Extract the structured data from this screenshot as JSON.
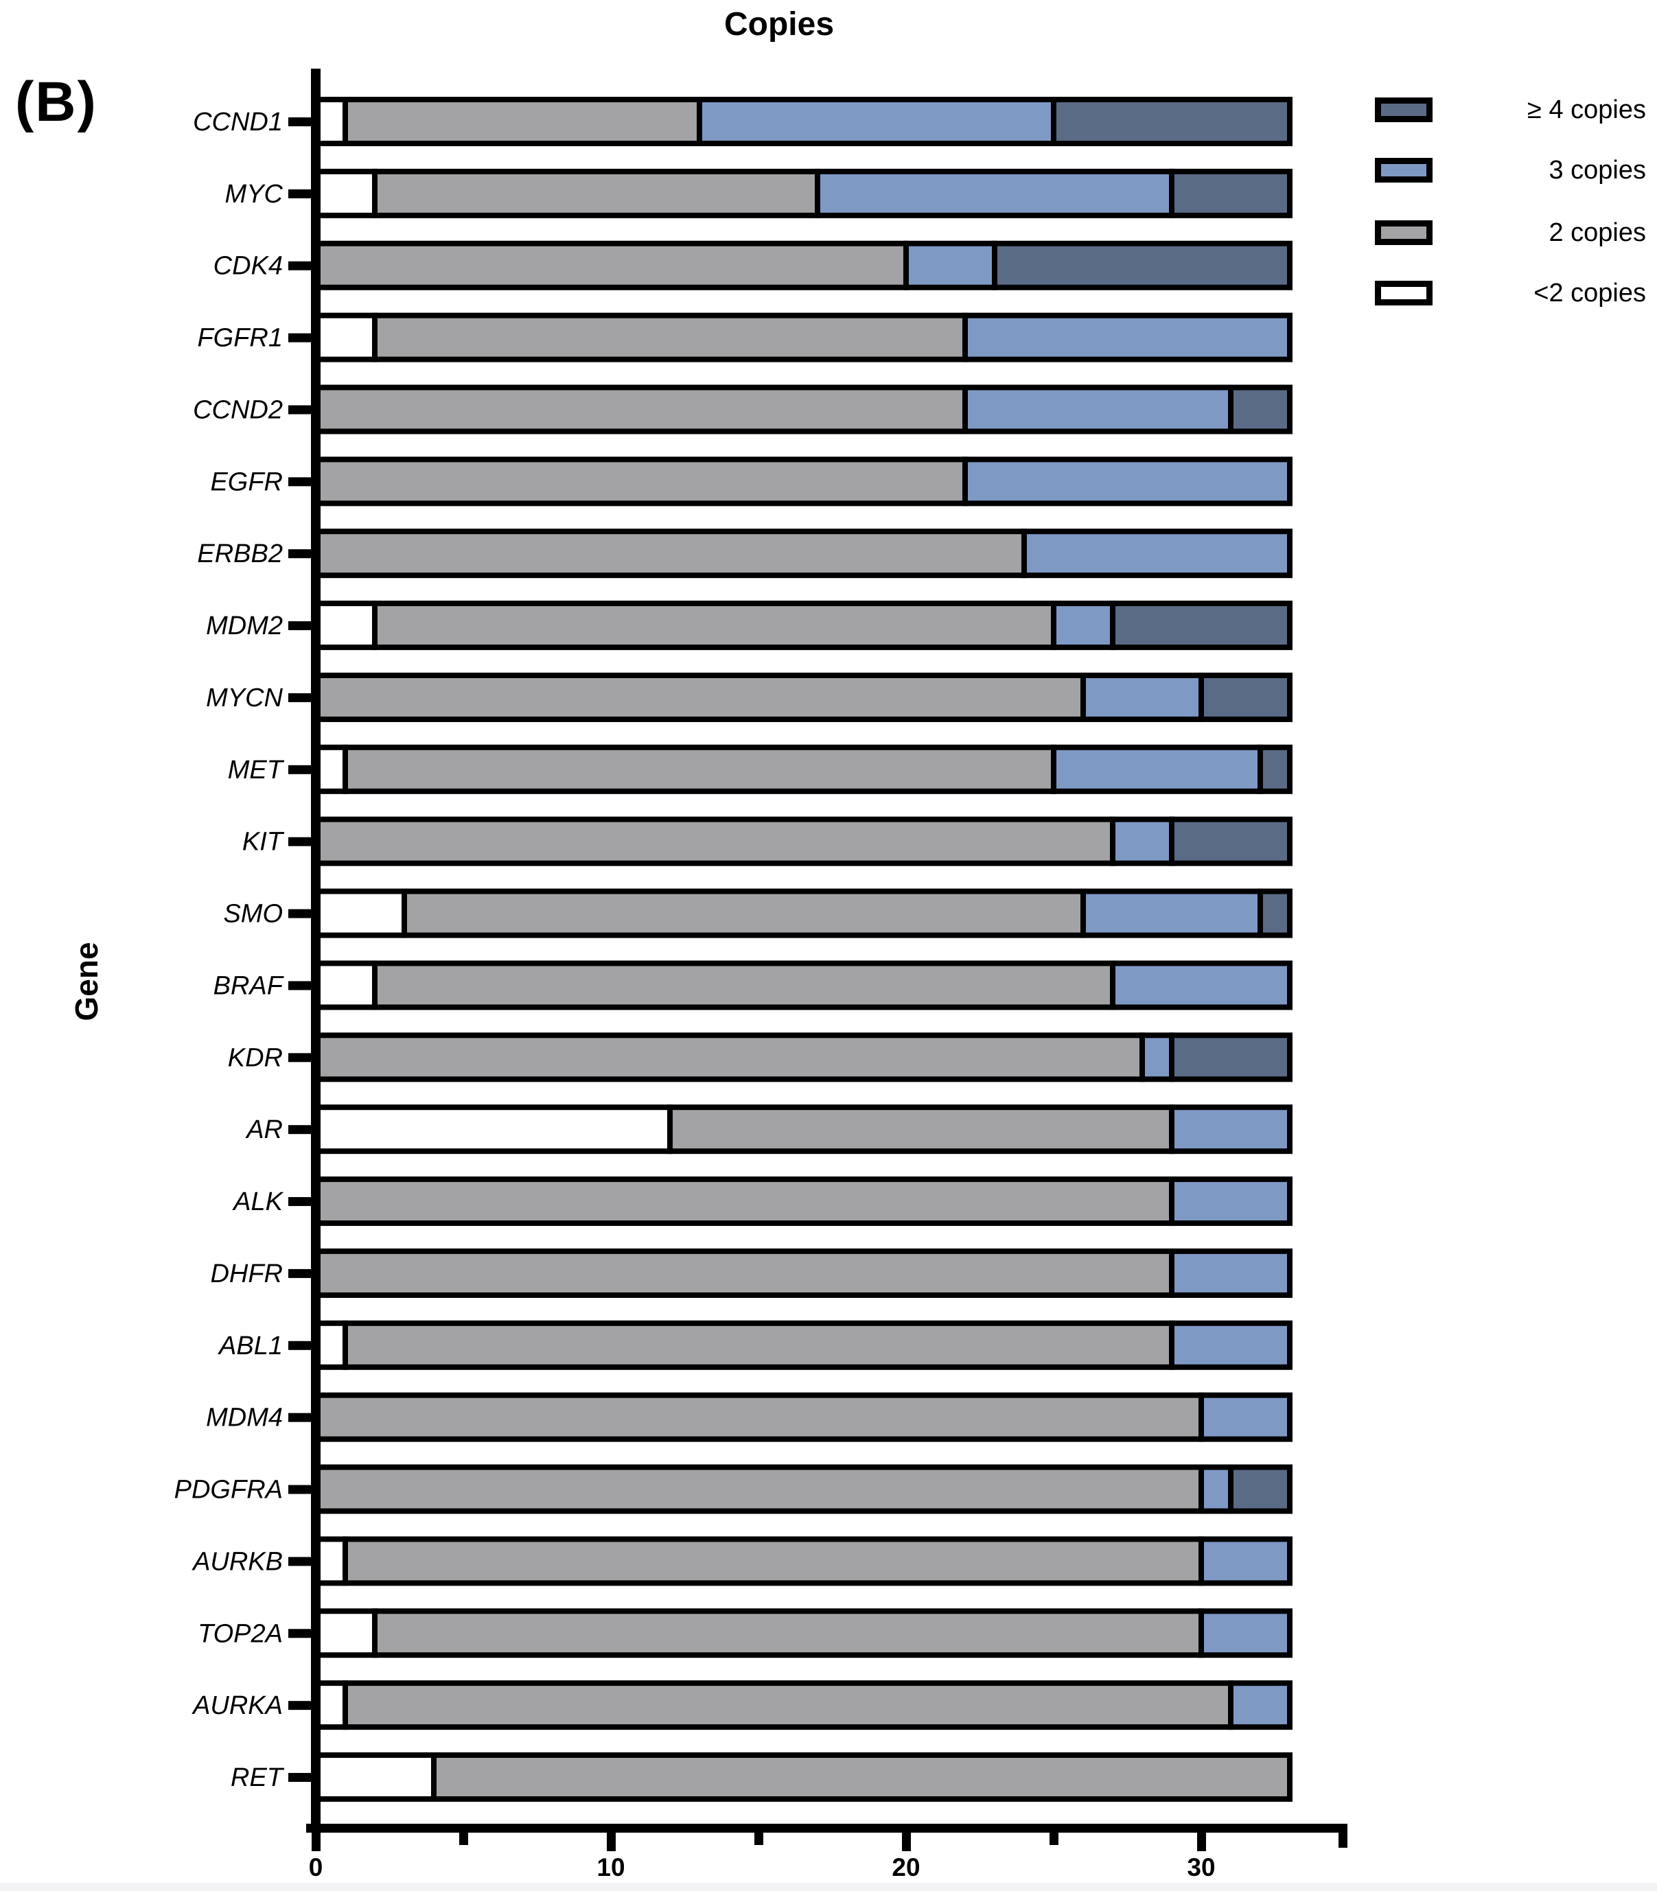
{
  "panel_label": "(B)",
  "title": "Copies",
  "y_axis_label": "Gene",
  "legend": {
    "items": [
      {
        "label": "≥ 4 copies",
        "color": "#5a6b85"
      },
      {
        "label": "3 copies",
        "color": "#7f99c5"
      },
      {
        "label": "2 copies",
        "color": "#a3a3a6"
      },
      {
        "label": "<2 copies",
        "color": "#ffffff"
      }
    ]
  },
  "chart_data": {
    "type": "bar",
    "orientation": "horizontal",
    "stacked": true,
    "title": "Copies",
    "xlabel": "",
    "ylabel": "Gene",
    "xlim": [
      0,
      35
    ],
    "x_ticks_major": [
      0,
      10,
      20,
      30
    ],
    "x_ticks_minor": [
      5,
      15,
      25
    ],
    "grid": false,
    "legend_position": "upper right",
    "total_per_gene": 33,
    "categories": [
      "CCND1",
      "MYC",
      "CDK4",
      "FGFR1",
      "CCND2",
      "EGFR",
      "ERBB2",
      "MDM2",
      "MYCN",
      "MET",
      "KIT",
      "SMO",
      "BRAF",
      "KDR",
      "AR",
      "ALK",
      "DHFR",
      "ABL1",
      "MDM4",
      "PDGFRA",
      "AURKB",
      "TOP2A",
      "AURKA",
      "RET"
    ],
    "series": [
      {
        "name": "<2 copies",
        "color": "#ffffff",
        "values": [
          1,
          2,
          0,
          2,
          0,
          0,
          0,
          2,
          0,
          1,
          0,
          3,
          2,
          0,
          12,
          0,
          0,
          1,
          0,
          0,
          1,
          2,
          1,
          4
        ]
      },
      {
        "name": "2 copies",
        "color": "#a3a3a6",
        "values": [
          12,
          15,
          20,
          20,
          22,
          22,
          24,
          23,
          26,
          24,
          27,
          23,
          25,
          28,
          17,
          29,
          29,
          28,
          30,
          30,
          29,
          28,
          30,
          29
        ]
      },
      {
        "name": "3 copies",
        "color": "#7f99c5",
        "values": [
          12,
          12,
          3,
          11,
          9,
          11,
          9,
          2,
          4,
          7,
          2,
          6,
          6,
          1,
          4,
          4,
          4,
          4,
          3,
          1,
          3,
          3,
          2,
          0
        ]
      },
      {
        "name": "≥ 4 copies",
        "color": "#5a6b85",
        "values": [
          8,
          4,
          10,
          0,
          2,
          0,
          0,
          6,
          3,
          1,
          4,
          1,
          0,
          4,
          0,
          0,
          0,
          0,
          0,
          2,
          0,
          0,
          0,
          0
        ]
      }
    ]
  }
}
